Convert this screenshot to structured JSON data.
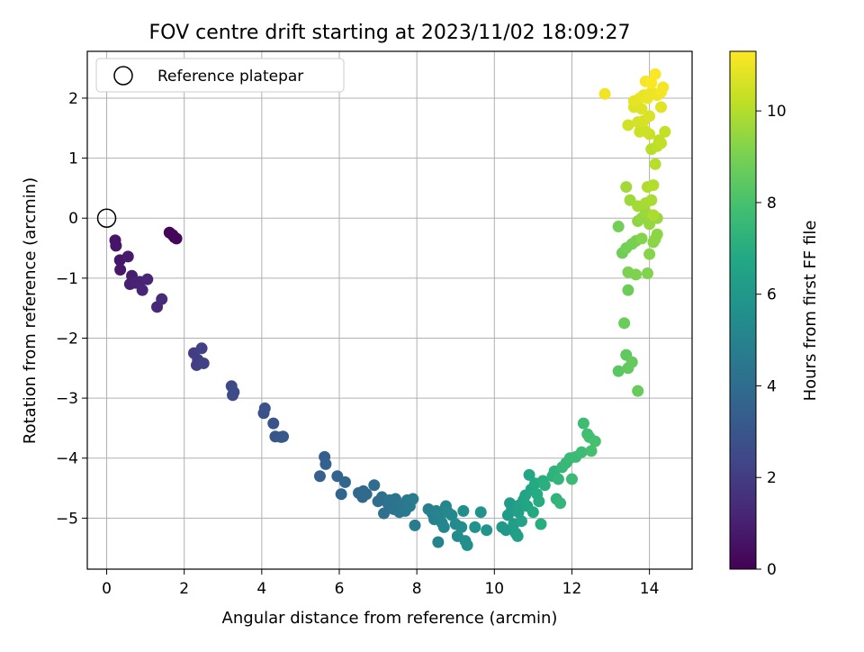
{
  "chart_data": {
    "type": "scatter",
    "title": "FOV centre drift starting at 2023/11/02 18:09:27",
    "xlabel": "Angular distance from reference (arcmin)",
    "ylabel": "Rotation from reference (arcmin)",
    "xlim": [
      -0.5,
      15.1
    ],
    "ylim": [
      -5.85,
      2.78
    ],
    "xticks": [
      0,
      2,
      4,
      6,
      8,
      10,
      12,
      14
    ],
    "yticks": [
      -5,
      -4,
      -3,
      -2,
      -1,
      0,
      1,
      2
    ],
    "grid": true,
    "legend": {
      "placement": "top-left",
      "entries": [
        "Reference platepar"
      ]
    },
    "reference_point": {
      "x": 0,
      "y": 0
    },
    "colorbar": {
      "label": "Hours from first FF file",
      "range": [
        0,
        11.3
      ],
      "ticks": [
        0,
        2,
        4,
        6,
        8,
        10
      ],
      "colormap": "viridis"
    },
    "points": [
      [
        1.75,
        -0.32,
        0.0
      ],
      [
        1.62,
        -0.24,
        0.1
      ],
      [
        1.7,
        -0.28,
        0.15
      ],
      [
        1.8,
        -0.34,
        0.2
      ],
      [
        0.22,
        -0.37,
        0.6
      ],
      [
        0.24,
        -0.46,
        0.65
      ],
      [
        0.34,
        -0.7,
        0.7
      ],
      [
        0.35,
        -0.86,
        0.75
      ],
      [
        0.55,
        -0.64,
        0.8
      ],
      [
        0.65,
        -0.96,
        0.9
      ],
      [
        0.6,
        -1.1,
        1.0
      ],
      [
        0.75,
        -1.08,
        1.05
      ],
      [
        0.85,
        -1.06,
        1.1
      ],
      [
        0.92,
        -1.2,
        1.15
      ],
      [
        1.05,
        -1.02,
        1.2
      ],
      [
        1.3,
        -1.48,
        1.3
      ],
      [
        1.42,
        -1.35,
        1.4
      ],
      [
        2.25,
        -2.25,
        2.0
      ],
      [
        2.35,
        -2.36,
        2.05
      ],
      [
        2.32,
        -2.45,
        2.1
      ],
      [
        2.45,
        -2.17,
        2.15
      ],
      [
        2.5,
        -2.42,
        2.2
      ],
      [
        3.22,
        -2.8,
        2.5
      ],
      [
        3.28,
        -2.9,
        2.55
      ],
      [
        3.25,
        -2.95,
        2.6
      ],
      [
        4.05,
        -3.25,
        2.8
      ],
      [
        4.08,
        -3.17,
        2.85
      ],
      [
        4.3,
        -3.42,
        2.95
      ],
      [
        4.35,
        -3.64,
        3.0
      ],
      [
        4.5,
        -3.65,
        3.05
      ],
      [
        4.55,
        -3.64,
        3.1
      ],
      [
        5.5,
        -4.3,
        3.4
      ],
      [
        5.62,
        -3.98,
        3.45
      ],
      [
        5.65,
        -4.1,
        3.5
      ],
      [
        5.95,
        -4.3,
        3.6
      ],
      [
        6.05,
        -4.6,
        3.65
      ],
      [
        6.15,
        -4.4,
        3.7
      ],
      [
        6.5,
        -4.58,
        3.8
      ],
      [
        6.6,
        -4.65,
        3.85
      ],
      [
        6.62,
        -4.55,
        3.9
      ],
      [
        6.7,
        -4.6,
        3.95
      ],
      [
        6.9,
        -4.45,
        4.0
      ],
      [
        7.0,
        -4.72,
        4.05
      ],
      [
        7.1,
        -4.65,
        4.1
      ],
      [
        7.15,
        -4.92,
        4.15
      ],
      [
        7.25,
        -4.75,
        4.2
      ],
      [
        7.3,
        -4.7,
        4.25
      ],
      [
        7.4,
        -4.85,
        4.3
      ],
      [
        7.45,
        -4.68,
        4.35
      ],
      [
        7.55,
        -4.9,
        4.4
      ],
      [
        7.6,
        -4.8,
        4.45
      ],
      [
        7.7,
        -4.88,
        4.5
      ],
      [
        7.75,
        -4.7,
        4.55
      ],
      [
        7.82,
        -4.8,
        4.6
      ],
      [
        7.9,
        -4.68,
        4.65
      ],
      [
        7.95,
        -5.12,
        4.7
      ],
      [
        8.3,
        -4.85,
        4.8
      ],
      [
        8.4,
        -4.92,
        4.85
      ],
      [
        8.45,
        -5.02,
        4.9
      ],
      [
        8.5,
        -4.88,
        4.95
      ],
      [
        8.55,
        -5.4,
        5.0
      ],
      [
        8.6,
        -4.95,
        5.05
      ],
      [
        8.65,
        -5.08,
        5.1
      ],
      [
        8.7,
        -5.15,
        5.15
      ],
      [
        8.75,
        -4.8,
        5.2
      ],
      [
        8.8,
        -4.9,
        5.25
      ],
      [
        8.9,
        -4.95,
        5.3
      ],
      [
        9.0,
        -5.1,
        5.35
      ],
      [
        9.05,
        -5.3,
        5.4
      ],
      [
        9.15,
        -5.15,
        5.45
      ],
      [
        9.2,
        -4.88,
        5.5
      ],
      [
        9.25,
        -5.38,
        5.55
      ],
      [
        9.3,
        -5.45,
        5.6
      ],
      [
        9.5,
        -5.15,
        5.7
      ],
      [
        9.65,
        -4.9,
        5.75
      ],
      [
        9.8,
        -5.2,
        5.8
      ],
      [
        10.2,
        -5.15,
        6.0
      ],
      [
        10.3,
        -5.2,
        6.05
      ],
      [
        10.35,
        -4.95,
        6.1
      ],
      [
        10.4,
        -4.75,
        6.15
      ],
      [
        10.45,
        -4.85,
        6.2
      ],
      [
        10.5,
        -5.1,
        6.25
      ],
      [
        10.55,
        -5.25,
        6.3
      ],
      [
        10.6,
        -5.3,
        6.35
      ],
      [
        10.62,
        -4.9,
        6.4
      ],
      [
        10.65,
        -4.78,
        6.45
      ],
      [
        10.7,
        -5.05,
        6.5
      ],
      [
        10.75,
        -4.7,
        6.55
      ],
      [
        10.8,
        -4.62,
        6.6
      ],
      [
        10.85,
        -4.8,
        6.65
      ],
      [
        10.9,
        -4.28,
        6.7
      ],
      [
        10.95,
        -4.52,
        6.75
      ],
      [
        11.0,
        -4.9,
        6.8
      ],
      [
        11.05,
        -4.42,
        6.85
      ],
      [
        11.1,
        -4.6,
        6.9
      ],
      [
        11.15,
        -4.72,
        6.95
      ],
      [
        11.2,
        -5.1,
        7.0
      ],
      [
        11.25,
        -4.38,
        7.05
      ],
      [
        11.3,
        -4.45,
        7.1
      ],
      [
        11.5,
        -4.3,
        7.2
      ],
      [
        11.55,
        -4.22,
        7.25
      ],
      [
        11.6,
        -4.68,
        7.3
      ],
      [
        11.65,
        -4.35,
        7.35
      ],
      [
        11.7,
        -4.75,
        7.4
      ],
      [
        11.75,
        -4.15,
        7.45
      ],
      [
        11.85,
        -4.08,
        7.5
      ],
      [
        11.95,
        -4.0,
        7.55
      ],
      [
        12.0,
        -4.35,
        7.6
      ],
      [
        12.1,
        -3.98,
        7.65
      ],
      [
        12.25,
        -3.9,
        7.7
      ],
      [
        12.3,
        -3.42,
        7.75
      ],
      [
        12.4,
        -3.6,
        7.8
      ],
      [
        12.45,
        -3.65,
        7.85
      ],
      [
        12.5,
        -3.88,
        7.9
      ],
      [
        12.6,
        -3.72,
        7.95
      ],
      [
        13.2,
        -2.55,
        8.4
      ],
      [
        13.4,
        -2.28,
        8.5
      ],
      [
        13.45,
        -2.5,
        8.55
      ],
      [
        13.55,
        -2.4,
        8.6
      ],
      [
        13.7,
        -2.88,
        8.65
      ],
      [
        13.35,
        -1.75,
        8.7
      ],
      [
        13.45,
        -1.2,
        8.75
      ],
      [
        13.3,
        -0.58,
        8.8
      ],
      [
        13.2,
        -0.14,
        8.85
      ],
      [
        13.4,
        -0.5,
        8.9
      ],
      [
        13.55,
        -0.43,
        8.95
      ],
      [
        13.65,
        -0.38,
        9.0
      ],
      [
        13.45,
        -0.9,
        9.05
      ],
      [
        13.65,
        -0.94,
        9.1
      ],
      [
        13.95,
        -0.92,
        9.15
      ],
      [
        13.8,
        -0.34,
        9.2
      ],
      [
        14.0,
        -0.6,
        9.25
      ],
      [
        14.1,
        -0.4,
        9.3
      ],
      [
        14.2,
        -0.27,
        9.35
      ],
      [
        14.15,
        -0.35,
        9.35
      ],
      [
        13.7,
        -0.05,
        9.4
      ],
      [
        13.8,
        0.0,
        9.45
      ],
      [
        14.0,
        -0.1,
        9.5
      ],
      [
        14.2,
        0.0,
        9.55
      ],
      [
        13.9,
        0.1,
        9.6
      ],
      [
        13.5,
        0.3,
        9.65
      ],
      [
        13.4,
        0.52,
        9.7
      ],
      [
        13.7,
        0.2,
        9.75
      ],
      [
        13.9,
        0.25,
        9.8
      ],
      [
        14.05,
        0.3,
        9.85
      ],
      [
        14.1,
        0.05,
        9.9
      ],
      [
        13.95,
        0.52,
        9.95
      ],
      [
        14.1,
        0.55,
        10.0
      ],
      [
        14.15,
        0.9,
        10.05
      ],
      [
        14.05,
        1.15,
        10.1
      ],
      [
        14.2,
        1.2,
        10.15
      ],
      [
        14.25,
        1.3,
        10.2
      ],
      [
        14.3,
        1.25,
        10.25
      ],
      [
        14.4,
        1.44,
        10.3
      ],
      [
        14.0,
        1.4,
        10.35
      ],
      [
        13.75,
        1.44,
        10.4
      ],
      [
        13.9,
        1.45,
        10.45
      ],
      [
        13.45,
        1.55,
        10.5
      ],
      [
        13.7,
        1.6,
        10.55
      ],
      [
        13.85,
        1.62,
        10.6
      ],
      [
        14.0,
        1.7,
        10.65
      ],
      [
        13.6,
        1.85,
        10.7
      ],
      [
        13.8,
        1.82,
        10.75
      ],
      [
        14.3,
        1.85,
        10.8
      ],
      [
        13.6,
        1.95,
        10.85
      ],
      [
        13.75,
        2.0,
        10.9
      ],
      [
        13.85,
        2.05,
        10.95
      ],
      [
        13.95,
        2.0,
        11.0
      ],
      [
        14.05,
        2.1,
        11.0
      ],
      [
        14.2,
        2.05,
        11.05
      ],
      [
        14.3,
        2.1,
        11.1
      ],
      [
        14.35,
        2.18,
        11.15
      ],
      [
        13.9,
        2.28,
        11.2
      ],
      [
        14.15,
        2.4,
        11.25
      ],
      [
        14.05,
        2.25,
        11.25
      ],
      [
        12.85,
        2.07,
        11.05
      ]
    ]
  }
}
